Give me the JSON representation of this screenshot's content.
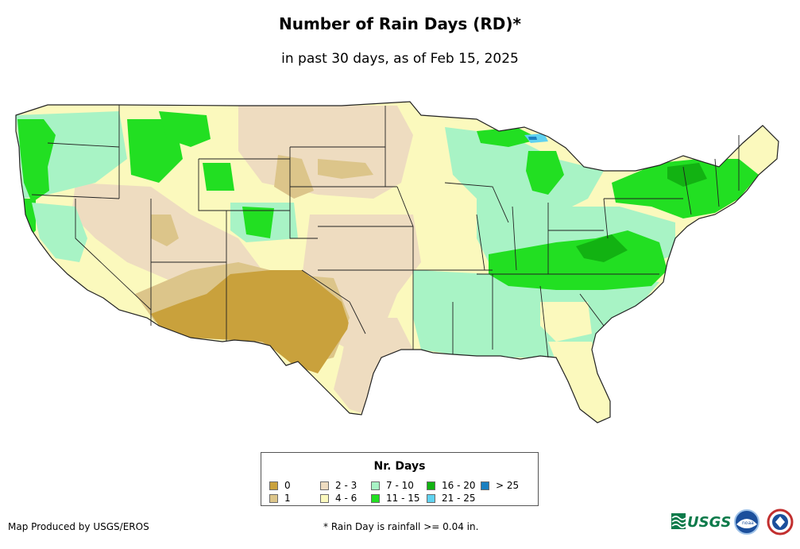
{
  "title": "Number of Rain Days (RD)*",
  "subtitle": "in past 30 days, as of Feb 15, 2025",
  "legend": {
    "title": "Nr. Days",
    "items": [
      {
        "label": "0",
        "color": "#c9a13c"
      },
      {
        "label": "1",
        "color": "#dcc58a"
      },
      {
        "label": "2 - 3",
        "color": "#eedcc0"
      },
      {
        "label": "4 - 6",
        "color": "#fbf9bd"
      },
      {
        "label": "7 - 10",
        "color": "#a8f3c5"
      },
      {
        "label": "11 - 15",
        "color": "#22df22"
      },
      {
        "label": "16 - 20",
        "color": "#12b212"
      },
      {
        "label": "21 - 25",
        "color": "#5fd2f0"
      },
      {
        "label": "> 25",
        "color": "#1a7fc0"
      }
    ]
  },
  "footer": {
    "credit": "Map Produced by USGS/EROS",
    "note": "* Rain Day is rainfall >= 0.04 in."
  },
  "logos": {
    "usgs": "USGS",
    "noaa": "noaa"
  }
}
